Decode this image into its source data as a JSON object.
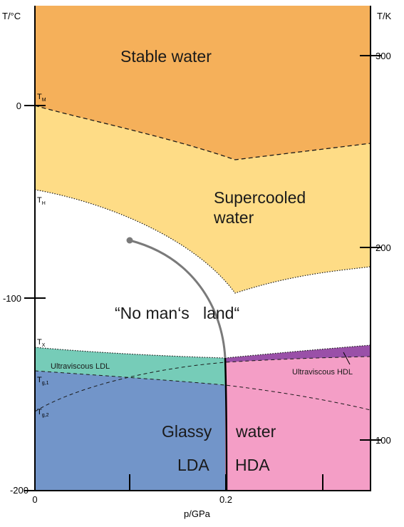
{
  "axes": {
    "left_title": "T/°C",
    "right_title": "T/K",
    "x_title": "p/GPa",
    "left_ticks": [
      "0",
      "-100",
      "-200"
    ],
    "right_ticks": [
      "300",
      "200",
      "100"
    ],
    "x_ticks": [
      "0",
      "0.2"
    ]
  },
  "regions": {
    "stable_water": "Stable water",
    "supercooled_line1": "Supercooled",
    "supercooled_line2": "water",
    "no_mans_land": "“No man‘s   land“",
    "ultraviscous_ldl": "Ultraviscous LDL",
    "ultraviscous_hdl": "Ultraviscous HDL",
    "glassy": "Glassy",
    "water": "water",
    "lda": "LDA",
    "hda": "HDA"
  },
  "temperature_labels": {
    "tm": {
      "main": "T",
      "sub": "M"
    },
    "th": {
      "main": "T",
      "sub": "H"
    },
    "tx": {
      "main": "T",
      "sub": "X"
    },
    "tg1": {
      "main": "T",
      "sub": "g,1"
    },
    "tg2": {
      "main": "T",
      "sub": "g,2"
    }
  },
  "colors": {
    "stable_water": "#f5b05a",
    "supercooled": "#fedc86",
    "no_mans_land": "#ffffff",
    "ultraviscous_ldl": "#76ccb8",
    "ultraviscous_hdl": "#9a50a8",
    "lda": "#7295c9",
    "hda": "#f49ec6",
    "critical_line": "#7a7a7a"
  }
}
